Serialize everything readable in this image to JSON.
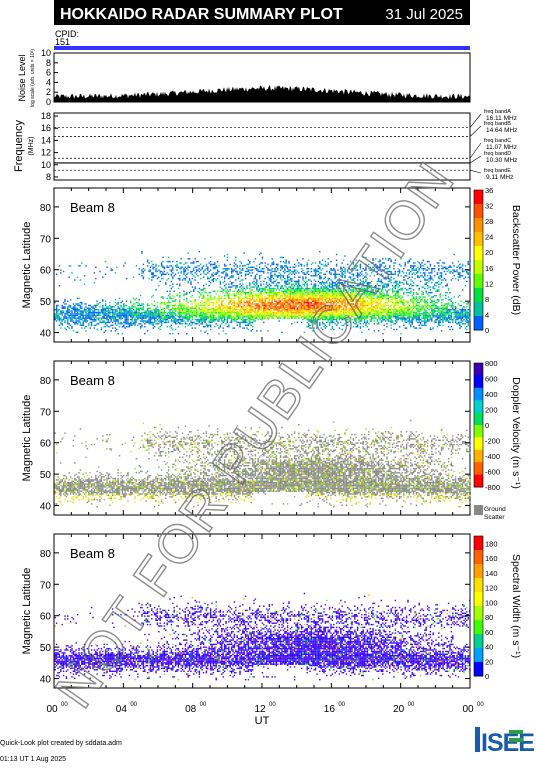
{
  "header": {
    "title": "HOKKAIDO RADAR SUMMARY PLOT",
    "date": "31 Jul 2025",
    "cpid_label": "CPID:",
    "cpid_value": "151",
    "band_color": "#3333ff",
    "title_bg": "#000000",
    "title_fg": "#ffffff"
  },
  "noise_panel": {
    "ylabel": "Noise Level",
    "ylabel_sub": "log scale (arb. units × 10³)",
    "yticks": [
      "10",
      "8",
      "6",
      "4",
      "2",
      "0"
    ],
    "ylim": [
      0,
      10
    ]
  },
  "freq_panel": {
    "ylabel": "Frequency",
    "ylabel_sub": "(MHz)",
    "yticks": [
      "18",
      "16",
      "14",
      "12",
      "10",
      "8"
    ],
    "ylim": [
      7.5,
      18.5
    ],
    "bands": [
      {
        "name": "freq bandA",
        "value": "16.11 MHz",
        "mhz": 16.11
      },
      {
        "name": "freq bandB",
        "value": "14.64 MHz",
        "mhz": 14.64
      },
      {
        "name": "freq bandC",
        "value": "11.07 MHz",
        "mhz": 11.07
      },
      {
        "name": "freq bandD",
        "value": "10.30 MHz",
        "mhz": 10.3
      },
      {
        "name": "freq bandE",
        "value": "9.11 MHz",
        "mhz": 9.11
      }
    ]
  },
  "chart_data": [
    {
      "type": "heatmap",
      "name": "Backscatter Power",
      "beam_label": "Beam  8",
      "ylabel": "Magnetic Latitude",
      "colorbar_label": "Backscatter Power (dB)",
      "colorbar_ticks": [
        "36",
        "32",
        "28",
        "24",
        "20",
        "16",
        "12",
        "8",
        "4",
        "0"
      ],
      "colorbar_range": [
        0,
        36
      ],
      "yticks": [
        "80",
        "70",
        "60",
        "50",
        "40"
      ],
      "ylim": [
        37,
        86
      ],
      "xlim_hours": [
        0,
        24
      ]
    },
    {
      "type": "heatmap",
      "name": "Doppler Velocity",
      "beam_label": "Beam  8",
      "ylabel": "Magnetic Latitude",
      "colorbar_label": "Doppler Velocity (m s⁻¹)",
      "colorbar_ticks": [
        "800",
        "600",
        "400",
        "200",
        "0",
        "-200",
        "-400",
        "-600",
        "-800"
      ],
      "colorbar_range": [
        -800,
        800
      ],
      "colorbar_extra": [
        "Ground",
        "Scatter"
      ],
      "yticks": [
        "80",
        "70",
        "60",
        "50",
        "40"
      ],
      "ylim": [
        37,
        86
      ],
      "xlim_hours": [
        0,
        24
      ]
    },
    {
      "type": "heatmap",
      "name": "Spectral Width",
      "beam_label": "Beam  8",
      "ylabel": "Magnetic Latitude",
      "colorbar_label": "Spectral Width (m s⁻¹)",
      "colorbar_ticks": [
        "180",
        "160",
        "140",
        "120",
        "100",
        "80",
        "60",
        "40",
        "20",
        "0"
      ],
      "colorbar_range": [
        0,
        190
      ],
      "yticks": [
        "80",
        "70",
        "60",
        "50",
        "40"
      ],
      "ylim": [
        37,
        86
      ],
      "xlim_hours": [
        0,
        24
      ]
    }
  ],
  "x_axis": {
    "label": "UT",
    "ticks": [
      "00",
      "04",
      "08",
      "12",
      "16",
      "20",
      "00"
    ],
    "tick_sup": "00"
  },
  "watermark": "NOT FOR PUBLICATION",
  "footer": {
    "line1": "Quick-Look plot created by sddata.adm",
    "line2": "01:13 UT  1 Aug 2025",
    "logo_text": "ISEE"
  }
}
